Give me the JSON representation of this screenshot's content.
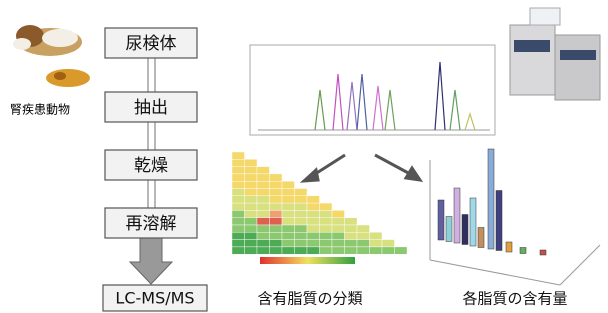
{
  "animal_label": "腎疾患動物",
  "steps": [
    "尿検体",
    "抽出",
    "乾燥",
    "再溶解"
  ],
  "instrument": "LC-MS/MS",
  "captions": [
    "含有脂質の分類",
    "各脂質の含有量"
  ]
}
